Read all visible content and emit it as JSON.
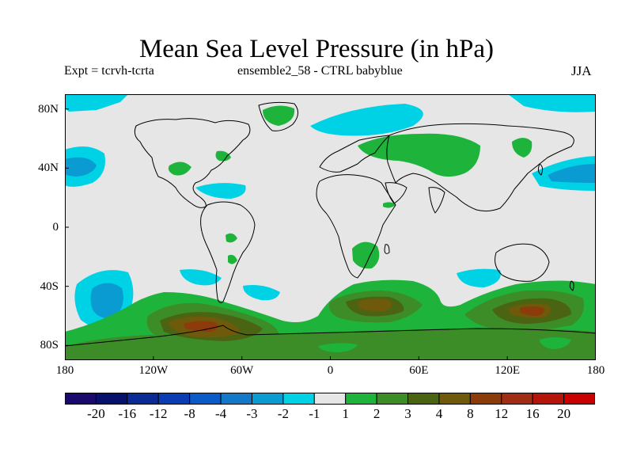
{
  "title": "Mean Sea Level Pressure (in hPa)",
  "subtitle_left": "Expt = tcrvh-tcrta",
  "subtitle_center": "ensemble2_58 - CTRL babyblue",
  "subtitle_right": "JJA",
  "lat_labels": [
    "80N",
    "40N",
    "0",
    "40S",
    "80S"
  ],
  "lon_labels": [
    "180",
    "120W",
    "60W",
    "0",
    "60E",
    "120E",
    "180"
  ],
  "colorbar": {
    "colors": [
      "#1a0a6e",
      "#08106e",
      "#0a2a96",
      "#0a3cb4",
      "#0a5ac8",
      "#1478c8",
      "#0a9bd2",
      "#00d2e6",
      "#e6e6e6",
      "#1eb43c",
      "#3c8c28",
      "#4b6414",
      "#6e5a0a",
      "#8c3c0a",
      "#a02d14",
      "#b4140a",
      "#c80000"
    ],
    "labels": [
      "-20",
      "-16",
      "-12",
      "-8",
      "-4",
      "-3",
      "-2",
      "-1",
      "1",
      "2",
      "3",
      "4",
      "8",
      "12",
      "16",
      "20"
    ]
  },
  "colors": {
    "background": "#e6e6e6",
    "neg_light": "#00d2e6",
    "neg_mid": "#0a9bd2",
    "pos_light": "#1eb43c",
    "pos_mid": "#3c8c28",
    "pos_dark": "#6e5a0a",
    "pos_darker": "#8c3c0a",
    "coast": "#000000"
  }
}
